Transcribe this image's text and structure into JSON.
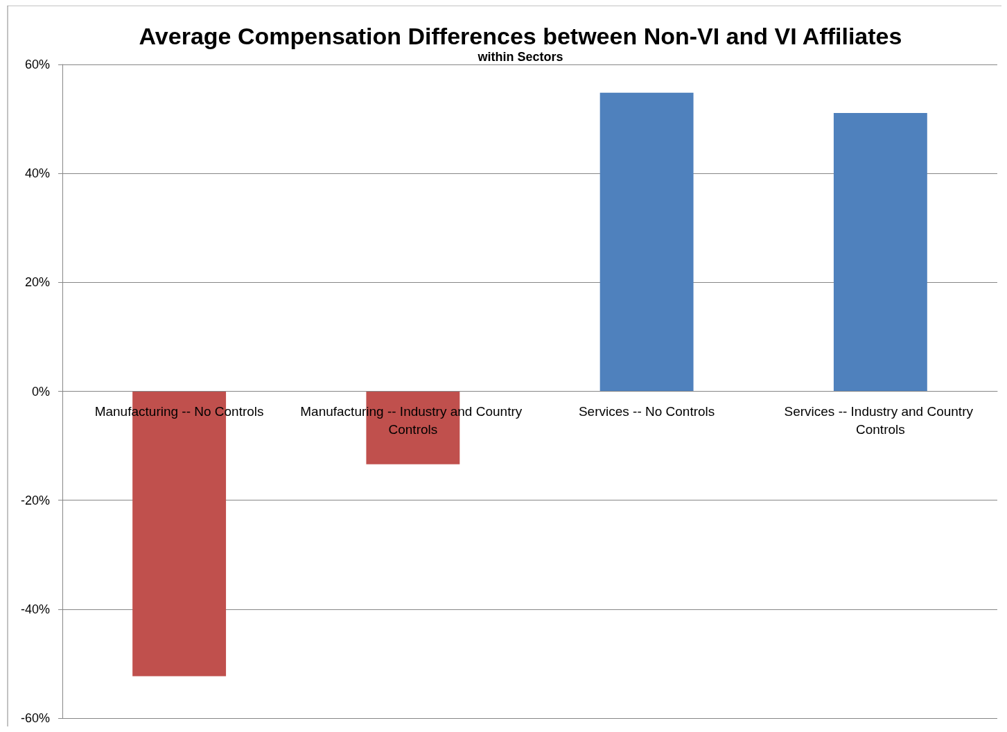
{
  "chart_data": {
    "type": "bar",
    "title": "Average Compensation Differences between Non-VI and VI Affiliates",
    "subtitle": "within Sectors",
    "categories": [
      "Manufacturing -- No Controls",
      "Manufacturing -- Industry and Country Controls",
      "Services -- No Controls",
      "Services -- Industry and Country Controls"
    ],
    "values": [
      -52.3,
      -13.4,
      54.8,
      51.1
    ],
    "colors": [
      "#c0504d",
      "#c0504d",
      "#4f81bd",
      "#4f81bd"
    ],
    "ylim": [
      -60,
      60
    ],
    "yticks": [
      {
        "value": -60,
        "label": "-60%"
      },
      {
        "value": -40,
        "label": "-40%"
      },
      {
        "value": -20,
        "label": "-20%"
      },
      {
        "value": 0,
        "label": "0%"
      },
      {
        "value": 20,
        "label": "20%"
      },
      {
        "value": 40,
        "label": "40%"
      },
      {
        "value": 60,
        "label": "60%"
      }
    ],
    "grid": "y"
  }
}
